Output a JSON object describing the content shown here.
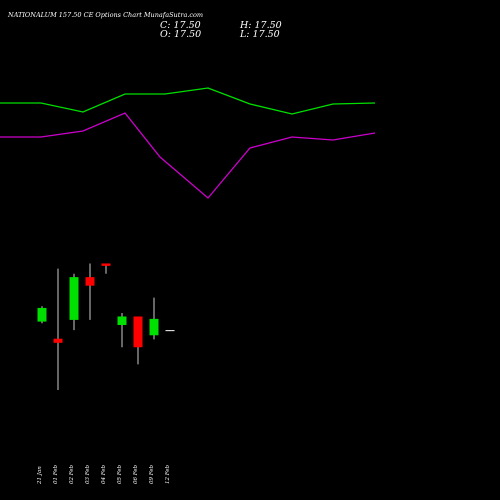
{
  "header": {
    "title": "NATIONALUM 157.50  CE Options  Chart MunafaSutra.com",
    "close_label": "C: 17.50",
    "high_label": "H: 17.50",
    "open_label": "O: 17.50",
    "low_label": "L: 17.50"
  },
  "chart_data": {
    "type": "candlestick",
    "title": "NATIONALUM 157.50  CE Options  Chart MunafaSutra.com",
    "categories": [
      "21 Jan",
      "01 Feb",
      "02 Feb",
      "03 Feb",
      "04 Feb",
      "05 Feb",
      "06 Feb",
      "09 Feb",
      "12 Feb"
    ],
    "candles": [
      {
        "open": 20.0,
        "close": 24.0,
        "high": 24.5,
        "low": 19.5
      },
      {
        "open": 15.0,
        "close": 13.8,
        "high": 35.5,
        "low": 0.0
      },
      {
        "open": 20.5,
        "close": 33.0,
        "high": 34.0,
        "low": 17.5
      },
      {
        "open": 33.0,
        "close": 30.5,
        "high": 37.0,
        "low": 20.5
      },
      {
        "open": 37.0,
        "close": 36.3,
        "high": 37.0,
        "low": 34.0
      },
      {
        "open": 19.0,
        "close": 21.5,
        "high": 22.5,
        "low": 12.5
      },
      {
        "open": 21.5,
        "close": 12.5,
        "high": 21.5,
        "low": 7.5
      },
      {
        "open": 16.0,
        "close": 20.8,
        "high": 27.0,
        "low": 14.8
      },
      {
        "open": 17.5,
        "close": 17.5,
        "high": 17.5,
        "low": 17.5
      }
    ],
    "lines": [
      {
        "color": "#00e000",
        "points": [
          [
            0,
            287
          ],
          [
            0.41,
            287
          ],
          [
            0.83,
            278
          ],
          [
            1.25,
            296
          ],
          [
            1.65,
            296
          ],
          [
            2.08,
            302
          ],
          [
            2.5,
            286
          ],
          [
            2.92,
            276
          ],
          [
            3.33,
            286
          ],
          [
            3.75,
            287
          ]
        ]
      },
      {
        "color": "#cc00cc",
        "points": [
          [
            0,
            253
          ],
          [
            0.41,
            253
          ],
          [
            0.83,
            259
          ],
          [
            1.25,
            277
          ],
          [
            1.6,
            233
          ],
          [
            2.08,
            192
          ],
          [
            2.5,
            242
          ],
          [
            2.92,
            253
          ],
          [
            3.33,
            250
          ],
          [
            3.75,
            257
          ]
        ]
      }
    ],
    "up_color": "#00e000",
    "down_color": "#ff0000",
    "background": "#000000"
  }
}
